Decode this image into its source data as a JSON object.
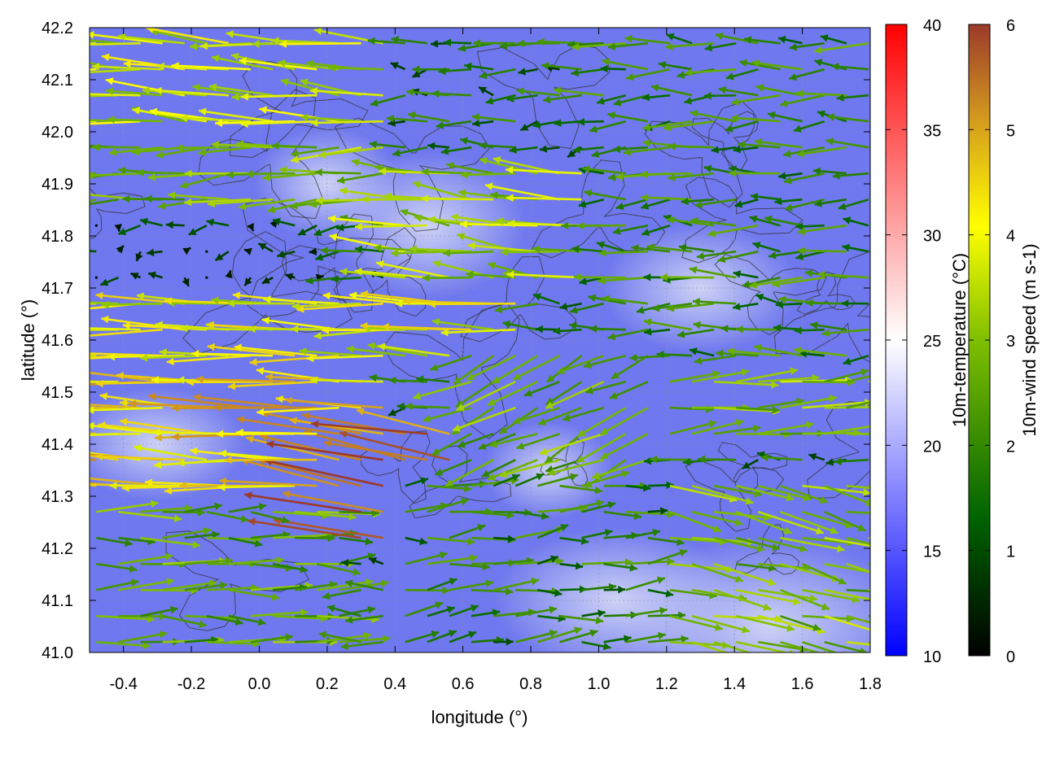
{
  "chart_data": {
    "type": "vector-field",
    "xlabel": "longitude (°)",
    "ylabel": "latitude (°)",
    "xlim": [
      -0.5,
      1.8
    ],
    "ylim": [
      41.0,
      42.2
    ],
    "xticks": [
      "-0.4",
      "-0.2",
      "0.0",
      "0.2",
      "0.4",
      "0.6",
      "0.8",
      "1.0",
      "1.2",
      "1.4",
      "1.6",
      "1.8"
    ],
    "yticks": [
      "41.0",
      "41.1",
      "41.2",
      "41.3",
      "41.4",
      "41.5",
      "41.6",
      "41.7",
      "41.8",
      "41.9",
      "42.0",
      "42.1",
      "42.2"
    ],
    "grid": true,
    "background_field": {
      "name": "10m-temperature",
      "colorbar_label": "10m-temperature (°C)",
      "range": [
        10,
        40
      ],
      "ticks": [
        "10",
        "15",
        "20",
        "25",
        "30",
        "35",
        "40"
      ],
      "colors": [
        "#0000ff",
        "#ffffff",
        "#ff0000"
      ],
      "typical_value": 17
    },
    "vector_field": {
      "name": "10m-wind speed",
      "colorbar_label": "10m-wind speed (m s-1)",
      "range": [
        0,
        6
      ],
      "ticks": [
        "0",
        "1",
        "2",
        "3",
        "4",
        "5",
        "6"
      ],
      "colors": [
        "#000000",
        "#006400",
        "#7fbf00",
        "#ffff00",
        "#d49a1e",
        "#9b3a2a"
      ],
      "regions": [
        {
          "lon": [
            -0.5,
            0.4
          ],
          "lat": [
            42.0,
            42.2
          ],
          "u": -3.5,
          "v": 0.3
        },
        {
          "lon": [
            -0.5,
            0.4
          ],
          "lat": [
            41.85,
            42.0
          ],
          "u": -2.8,
          "v": -0.2
        },
        {
          "lon": [
            -0.5,
            0.2
          ],
          "lat": [
            41.7,
            41.85
          ],
          "u": -0.4,
          "v": 0.0
        },
        {
          "lon": [
            -0.5,
            0.8
          ],
          "lat": [
            41.55,
            41.7
          ],
          "u": -3.8,
          "v": 0.1
        },
        {
          "lon": [
            -0.5,
            0.4
          ],
          "lat": [
            41.3,
            41.55
          ],
          "u": -4.5,
          "v": 0.2
        },
        {
          "lon": [
            0.2,
            0.8
          ],
          "lat": [
            41.2,
            41.45
          ],
          "u": -5.5,
          "v": 1.0
        },
        {
          "lon": [
            -0.5,
            0.3
          ],
          "lat": [
            41.0,
            41.3
          ],
          "u": 2.5,
          "v": 0.0
        },
        {
          "lon": [
            0.4,
            1.0
          ],
          "lat": [
            41.7,
            41.95
          ],
          "u": -3.2,
          "v": 0.4
        },
        {
          "lon": [
            1.0,
            1.8
          ],
          "lat": [
            41.55,
            42.2
          ],
          "u": -2.0,
          "v": 0.0
        },
        {
          "lon": [
            0.6,
            1.2
          ],
          "lat": [
            41.35,
            41.6
          ],
          "u": -2.5,
          "v": -1.0
        },
        {
          "lon": [
            1.2,
            1.8
          ],
          "lat": [
            41.4,
            41.55
          ],
          "u": 3.0,
          "v": 0.3
        },
        {
          "lon": [
            1.2,
            1.8
          ],
          "lat": [
            41.0,
            41.35
          ],
          "u": 2.8,
          "v": -0.6
        },
        {
          "lon": [
            0.4,
            1.2
          ],
          "lat": [
            41.0,
            41.35
          ],
          "u": 1.8,
          "v": 0.2
        }
      ]
    }
  }
}
